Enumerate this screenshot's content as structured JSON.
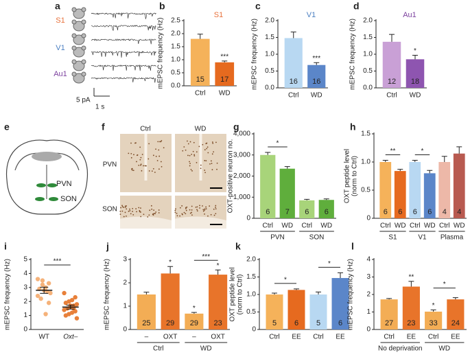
{
  "panel_letters": [
    "a",
    "b",
    "c",
    "d",
    "e",
    "f",
    "g",
    "h",
    "i",
    "j",
    "k",
    "l"
  ],
  "panel_a": {
    "regions": [
      "S1",
      "V1",
      "Au1"
    ],
    "scale_y": "5 pA",
    "scale_x": "1 s"
  },
  "panel_e": {
    "labels": [
      "PVN",
      "SON"
    ]
  },
  "panel_f": {
    "columns": [
      "Ctrl",
      "WD"
    ],
    "rows": [
      "PVN",
      "SON"
    ]
  },
  "chart_data": [
    {
      "type": "bar",
      "title": "S1",
      "title_color": "#e8703a",
      "ylabel": [
        "mEPSC frequency (Hz)"
      ],
      "categories": [
        "Ctrl",
        "WD"
      ],
      "values": [
        1.8,
        0.9
      ],
      "errors": [
        0.18,
        0.05
      ],
      "n": [
        15,
        17
      ],
      "colors": [
        "#f5b25a",
        "#e66a1f"
      ],
      "bar_stars": [
        null,
        "***"
      ],
      "ylim": [
        0,
        2.5
      ],
      "yticks": [
        {
          "value": 0,
          "label": "0.0"
        },
        0.5,
        {
          "value": 1,
          "label": "1.0"
        },
        1.5,
        {
          "value": 2,
          "label": "2.0"
        },
        2.5
      ]
    },
    {
      "type": "bar",
      "title": "V1",
      "title_color": "#4a7fc1",
      "ylabel": [
        "mEPSC frequency (Hz)"
      ],
      "categories": [
        "Ctrl",
        "WD"
      ],
      "values": [
        1.48,
        0.68
      ],
      "errors": [
        0.18,
        0.07
      ],
      "n": [
        16,
        16
      ],
      "colors": [
        "#b8d8f2",
        "#5b86c9"
      ],
      "bar_stars": [
        null,
        "***"
      ],
      "ylim": [
        0,
        2
      ],
      "yticks": [
        {
          "value": 0,
          "label": "0.0"
        },
        0.5,
        {
          "value": 1,
          "label": "1.0"
        },
        1.5,
        {
          "value": 2,
          "label": "2.0"
        }
      ]
    },
    {
      "type": "bar",
      "title": "Au1",
      "title_color": "#7b3f9e",
      "ylabel": [
        "mEPSC frequency (Hz)"
      ],
      "categories": [
        "Ctrl",
        "WD"
      ],
      "values": [
        1.37,
        0.85
      ],
      "errors": [
        0.22,
        0.12
      ],
      "n": [
        12,
        18
      ],
      "colors": [
        "#c9a0d6",
        "#8e55b0"
      ],
      "bar_stars": [
        null,
        "*"
      ],
      "ylim": [
        0,
        2
      ],
      "yticks": [
        {
          "value": 0,
          "label": "0.0"
        },
        0.5,
        {
          "value": 1,
          "label": "1.0"
        },
        1.5,
        {
          "value": 2,
          "label": "2.0"
        }
      ]
    },
    {
      "type": "bar",
      "ylabel": [
        "OXT-positive neuron no."
      ],
      "categories": [
        "Ctrl",
        "WD",
        "Ctrl",
        "WD"
      ],
      "groups": [
        "PVN",
        "SON"
      ],
      "values": [
        3000,
        2350,
        850,
        870
      ],
      "errors": [
        120,
        100,
        50,
        50
      ],
      "n": [
        6,
        7,
        6,
        6
      ],
      "colors": [
        "#a8d47a",
        "#5fae3c",
        "#a8d47a",
        "#5fae3c"
      ],
      "bracket_stars": [
        "*",
        null
      ],
      "ylim": [
        0,
        4000
      ],
      "yticks": [
        0,
        {
          "value": 1000,
          "label": "1,000"
        },
        {
          "value": 2000,
          "label": "2,000"
        },
        {
          "value": 3000,
          "label": "3,000"
        },
        {
          "value": 4000,
          "label": "4,000"
        }
      ]
    },
    {
      "type": "bar",
      "ylabel": [
        "OXT peptide level",
        "(norm to Ctrl)"
      ],
      "categories": [
        "Ctrl",
        "WD",
        "Ctrl",
        "WD",
        "Ctrl",
        "WD"
      ],
      "groups": [
        "S1",
        "V1",
        "Plasma"
      ],
      "values": [
        1.0,
        0.84,
        1.0,
        0.8,
        1.0,
        1.15
      ],
      "errors": [
        0.03,
        0.03,
        0.03,
        0.05,
        0.1,
        0.12
      ],
      "n": [
        6,
        6,
        6,
        6,
        4,
        4
      ],
      "colors": [
        "#f5b25a",
        "#e66a1f",
        "#b8d8f2",
        "#5b86c9",
        "#edb8a8",
        "#b85a50"
      ],
      "bracket_stars": [
        "**",
        "*",
        null
      ],
      "ylim": [
        0,
        1.5
      ],
      "yticks": [
        0,
        0.5,
        {
          "value": 1,
          "label": "1.0"
        },
        1.5
      ]
    },
    {
      "type": "strip",
      "ylabel": [
        "mEPSC frequency (Hz)"
      ],
      "categories": [
        "WT",
        "Oxt–"
      ],
      "series": [
        {
          "name": "WT",
          "color": "#f5b27a",
          "values": [
            3.6,
            3.3,
            3.0,
            3.2,
            2.9,
            2.6,
            2.7,
            2.8,
            2.2,
            2.4,
            1.9,
            1.1,
            3.5
          ]
        },
        {
          "name": "Oxt–",
          "color": "#e8803a",
          "values": [
            2.6,
            2.3,
            2.1,
            2.0,
            1.9,
            1.8,
            1.7,
            1.6,
            1.5,
            1.4,
            1.3,
            1.2,
            1.1,
            1.0,
            0.8,
            1.5,
            1.7
          ]
        }
      ],
      "means": [
        2.8,
        1.6
      ],
      "sem": [
        0.22,
        0.14
      ],
      "bracket_stars": [
        "***"
      ],
      "ylim": [
        0,
        5
      ],
      "yticks": [
        0,
        1,
        2,
        3,
        4,
        5
      ]
    },
    {
      "type": "bar",
      "ylabel": [
        "mEPSC frequency (Hz)"
      ],
      "categories": [
        "–",
        "OXT",
        "–",
        "OXT"
      ],
      "groups": [
        "Ctrl",
        "WD"
      ],
      "values": [
        1.5,
        2.4,
        0.68,
        2.35
      ],
      "errors": [
        0.1,
        0.3,
        0.05,
        0.2
      ],
      "n": [
        25,
        29,
        29,
        23
      ],
      "colors": [
        "#f3ad55",
        "#e8742a",
        "#f3ad55",
        "#e8742a"
      ],
      "bar_stars": [
        null,
        "*",
        "*",
        "*"
      ],
      "bracket_stars": [
        null,
        "***"
      ],
      "ylim": [
        0,
        3
      ],
      "yticks": [
        0,
        1,
        2,
        3
      ]
    },
    {
      "type": "bar",
      "ylabel": [
        "OXT peptide level",
        "(norm to Ctrl)"
      ],
      "categories": [
        "Ctrl",
        "EE",
        "Ctrl",
        "EE"
      ],
      "values": [
        1.0,
        1.13,
        1.0,
        1.47
      ],
      "errors": [
        0.04,
        0.03,
        0.07,
        0.15
      ],
      "n": [
        5,
        6,
        5,
        6
      ],
      "colors": [
        "#f5b25a",
        "#e66a1f",
        "#b8d8f2",
        "#5b86c9"
      ],
      "bracket_stars": [
        "*",
        "*"
      ],
      "ylim": [
        0,
        2
      ],
      "yticks": [
        0,
        0.5,
        {
          "value": 1,
          "label": "1.0"
        },
        1.5,
        {
          "value": 2,
          "label": "2.0"
        }
      ]
    },
    {
      "type": "bar",
      "ylabel": [
        "mEPSC frequency (Hz)"
      ],
      "categories": [
        "Ctrl",
        "EE",
        "Ctrl",
        "EE"
      ],
      "groups": [
        "No deprivation",
        "WD"
      ],
      "values": [
        1.72,
        2.45,
        1.02,
        1.72
      ],
      "errors": [
        0.05,
        0.3,
        0.1,
        0.1
      ],
      "n": [
        27,
        23,
        33,
        24
      ],
      "colors": [
        "#f3ad55",
        "#e8742a",
        "#f3ad55",
        "#e8742a"
      ],
      "bar_stars": [
        null,
        "**",
        "*",
        null
      ],
      "bracket_stars": [
        null,
        "*"
      ],
      "ylim": [
        0,
        4
      ],
      "yticks": [
        0,
        1,
        2,
        3,
        4
      ]
    }
  ]
}
